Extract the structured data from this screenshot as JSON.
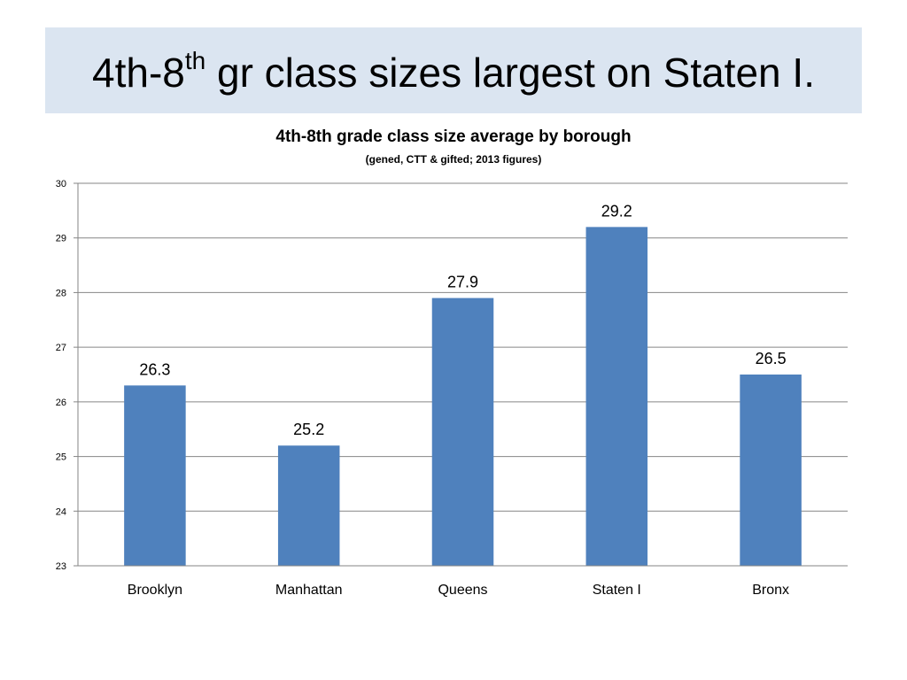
{
  "slide": {
    "title_main": "4th-8",
    "title_sup": "th",
    "title_rest": " gr class sizes largest on Staten I."
  },
  "chart_data": {
    "type": "bar",
    "title": "4th-8th grade class size average by borough",
    "subtitle": "(gened, CTT & gifted; 2013 figures)",
    "categories": [
      "Brooklyn",
      "Manhattan",
      "Queens",
      "Staten I",
      "Bronx"
    ],
    "values": [
      26.3,
      25.2,
      27.9,
      29.2,
      26.5
    ],
    "data_labels": [
      "26.3",
      "25.2",
      "27.9",
      "29.2",
      "26.5"
    ],
    "xlabel": "",
    "ylabel": "",
    "ylim": [
      23,
      30
    ],
    "yticks": [
      23,
      24,
      25,
      26,
      27,
      28,
      29,
      30
    ],
    "grid": true,
    "legend": "none",
    "bar_color": "#4f81bd",
    "grid_color": "#868686"
  },
  "colors": {
    "title_banner": "#dbe5f1"
  }
}
